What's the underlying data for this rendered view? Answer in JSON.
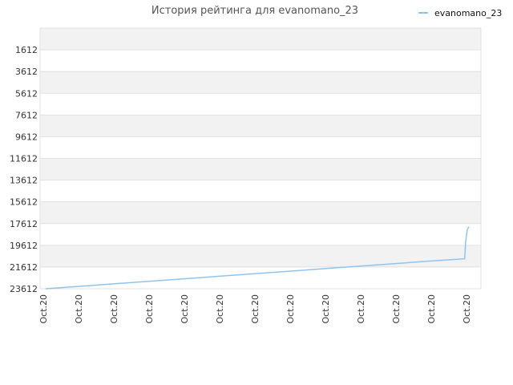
{
  "chart_data": {
    "type": "line",
    "title": "История рейтинга для evanomano_23",
    "xlabel": "",
    "ylabel": "",
    "y_reversed": true,
    "ylim": [
      23612,
      -388
    ],
    "y_ticks": [
      "1612",
      "3612",
      "5612",
      "7612",
      "9612",
      "11612",
      "13612",
      "15612",
      "17612",
      "19612",
      "21612",
      "23612"
    ],
    "x_ticks": [
      "Oct.20",
      "Oct.20",
      "Oct.20",
      "Oct.20",
      "Oct.20",
      "Oct.20",
      "Oct.20",
      "Oct.20",
      "Oct.20",
      "Oct.20",
      "Oct.20",
      "Oct.20",
      "Oct.20"
    ],
    "legend_position": "top-right",
    "grid": true,
    "series": [
      {
        "name": "evanomano_23",
        "color": "#90c4ee",
        "x": [
          0,
          0.05,
          0.1,
          0.15,
          0.2,
          0.25,
          0.3,
          0.35,
          0.4,
          0.45,
          0.5,
          0.55,
          0.6,
          0.65,
          0.7,
          0.75,
          0.8,
          0.85,
          0.9,
          0.95,
          0.99,
          0.992,
          0.996,
          1.0
        ],
        "values": [
          23612,
          23470,
          23330,
          23190,
          23050,
          22910,
          22770,
          22630,
          22490,
          22350,
          22210,
          22070,
          21930,
          21790,
          21650,
          21510,
          21370,
          21230,
          21090,
          20950,
          20850,
          19400,
          18200,
          17900
        ]
      }
    ]
  }
}
